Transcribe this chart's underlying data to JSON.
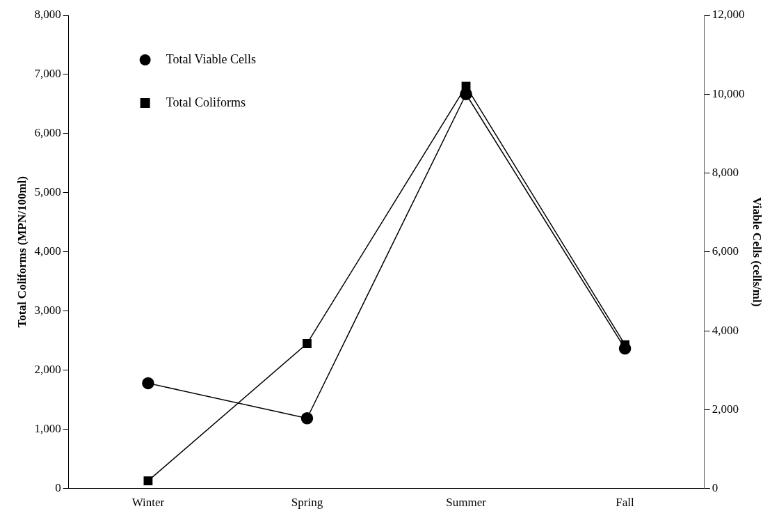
{
  "chart_data": {
    "type": "line",
    "categories": [
      "Winter",
      "Spring",
      "Summer",
      "Fall"
    ],
    "ylabel": "Total Coliforms (MPN/100ml)",
    "y2label": "Viable Cells (cells/ml)",
    "series": [
      {
        "name": "Total Viable Cells",
        "color": "#000000",
        "values": [
          2670,
          1780,
          10000,
          3550
        ],
        "axis": "y2",
        "marker": "circle"
      },
      {
        "name": "Total Coliforms",
        "color": "#000000",
        "values": [
          130,
          2450,
          6800,
          2430
        ],
        "marker": "square"
      }
    ],
    "ylim": [
      0,
      8000
    ],
    "yticks": [
      {
        "value": 0,
        "label": "0"
      },
      {
        "value": 1000,
        "label": "1,000"
      },
      {
        "value": 2000,
        "label": "2,000"
      },
      {
        "value": 3000,
        "label": "3,000"
      },
      {
        "value": 4000,
        "label": "4,000"
      },
      {
        "value": 5000,
        "label": "5,000"
      },
      {
        "value": 6000,
        "label": "6,000"
      },
      {
        "value": 7000,
        "label": "7,000"
      },
      {
        "value": 8000,
        "label": "8,000"
      }
    ],
    "y2lim": [
      0,
      12000
    ],
    "y2ticks": [
      {
        "value": 0,
        "label": "0"
      },
      {
        "value": 2000,
        "label": "2,000"
      },
      {
        "value": 4000,
        "label": "4,000"
      },
      {
        "value": 6000,
        "label": "6,000"
      },
      {
        "value": 8000,
        "label": "8,000"
      },
      {
        "value": 10000,
        "label": "10,000"
      },
      {
        "value": 12000,
        "label": "12,000"
      }
    ],
    "grid": false,
    "legend": "top left",
    "line_style": "solid"
  }
}
